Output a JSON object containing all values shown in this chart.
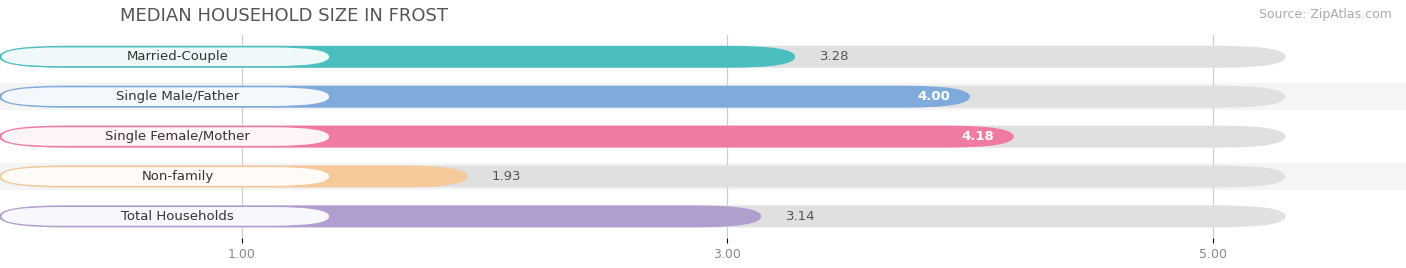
{
  "title": "MEDIAN HOUSEHOLD SIZE IN FROST",
  "source": "Source: ZipAtlas.com",
  "categories": [
    "Married-Couple",
    "Single Male/Father",
    "Single Female/Mother",
    "Non-family",
    "Total Households"
  ],
  "values": [
    3.28,
    4.0,
    4.18,
    1.93,
    3.14
  ],
  "bar_colors": [
    "#4bbfbf",
    "#7eaadc",
    "#f07aa0",
    "#f5c99a",
    "#b09ecf"
  ],
  "background_color": "#f2f2f2",
  "bar_bg_color": "#e0e0e0",
  "row_bg_colors": [
    "#ffffff",
    "#f0f0f0",
    "#ffffff",
    "#f0f0f0",
    "#ffffff"
  ],
  "xlim_min": 0.5,
  "xlim_max": 5.3,
  "xticks": [
    1.0,
    3.0,
    5.0
  ],
  "value_inside_color": "#ffffff",
  "value_outside_color": "#555555",
  "title_fontsize": 13,
  "source_fontsize": 9,
  "label_fontsize": 9.5,
  "tick_fontsize": 9,
  "bar_label_fontsize": 9.5,
  "inside_threshold": 3.5
}
